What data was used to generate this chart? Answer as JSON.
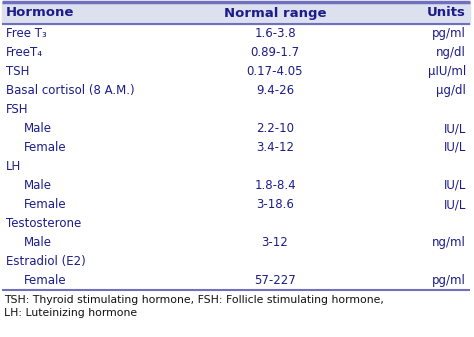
{
  "headers": [
    "Hormone",
    "Normal range",
    "Units"
  ],
  "rows": [
    [
      "Free T₃",
      "1.6-3.8",
      "pg/ml"
    ],
    [
      "FreeT₄",
      "0.89-1.7",
      "ng/dl"
    ],
    [
      "TSH",
      "0.17-4.05",
      "μIU/ml"
    ],
    [
      "Basal cortisol (8 A.M.)",
      "9.4-26",
      "μg/dl"
    ],
    [
      "FSH",
      "",
      ""
    ],
    [
      "   Male",
      "2.2-10",
      "IU/L"
    ],
    [
      "   Female",
      "3.4-12",
      "IU/L"
    ],
    [
      "LH",
      "",
      ""
    ],
    [
      "   Male",
      "1.8-8.4",
      "IU/L"
    ],
    [
      "   Female",
      "3-18.6",
      "IU/L"
    ],
    [
      "Testosterone",
      "",
      ""
    ],
    [
      "   Male",
      "3-12",
      "ng/ml"
    ],
    [
      "Estradiol (E2)",
      "",
      ""
    ],
    [
      "   Female",
      "57-227",
      "pg/ml"
    ]
  ],
  "footnote_line1": "TSH: Thyroid stimulating hormone, FSH: Follicle stimulating hormone,",
  "footnote_line2": "LH: Luteinizing hormone",
  "header_bg": "#dde0ef",
  "header_text_color": "#1c1c8a",
  "row_text_color": "#1c1c8a",
  "border_color_top": "#7070c0",
  "border_color_bottom": "#7070c0",
  "bg_color": "#ffffff",
  "header_fontsize": 9.5,
  "row_fontsize": 8.5,
  "footnote_fontsize": 7.8,
  "fig_width": 4.74,
  "fig_height": 3.37,
  "dpi": 100
}
